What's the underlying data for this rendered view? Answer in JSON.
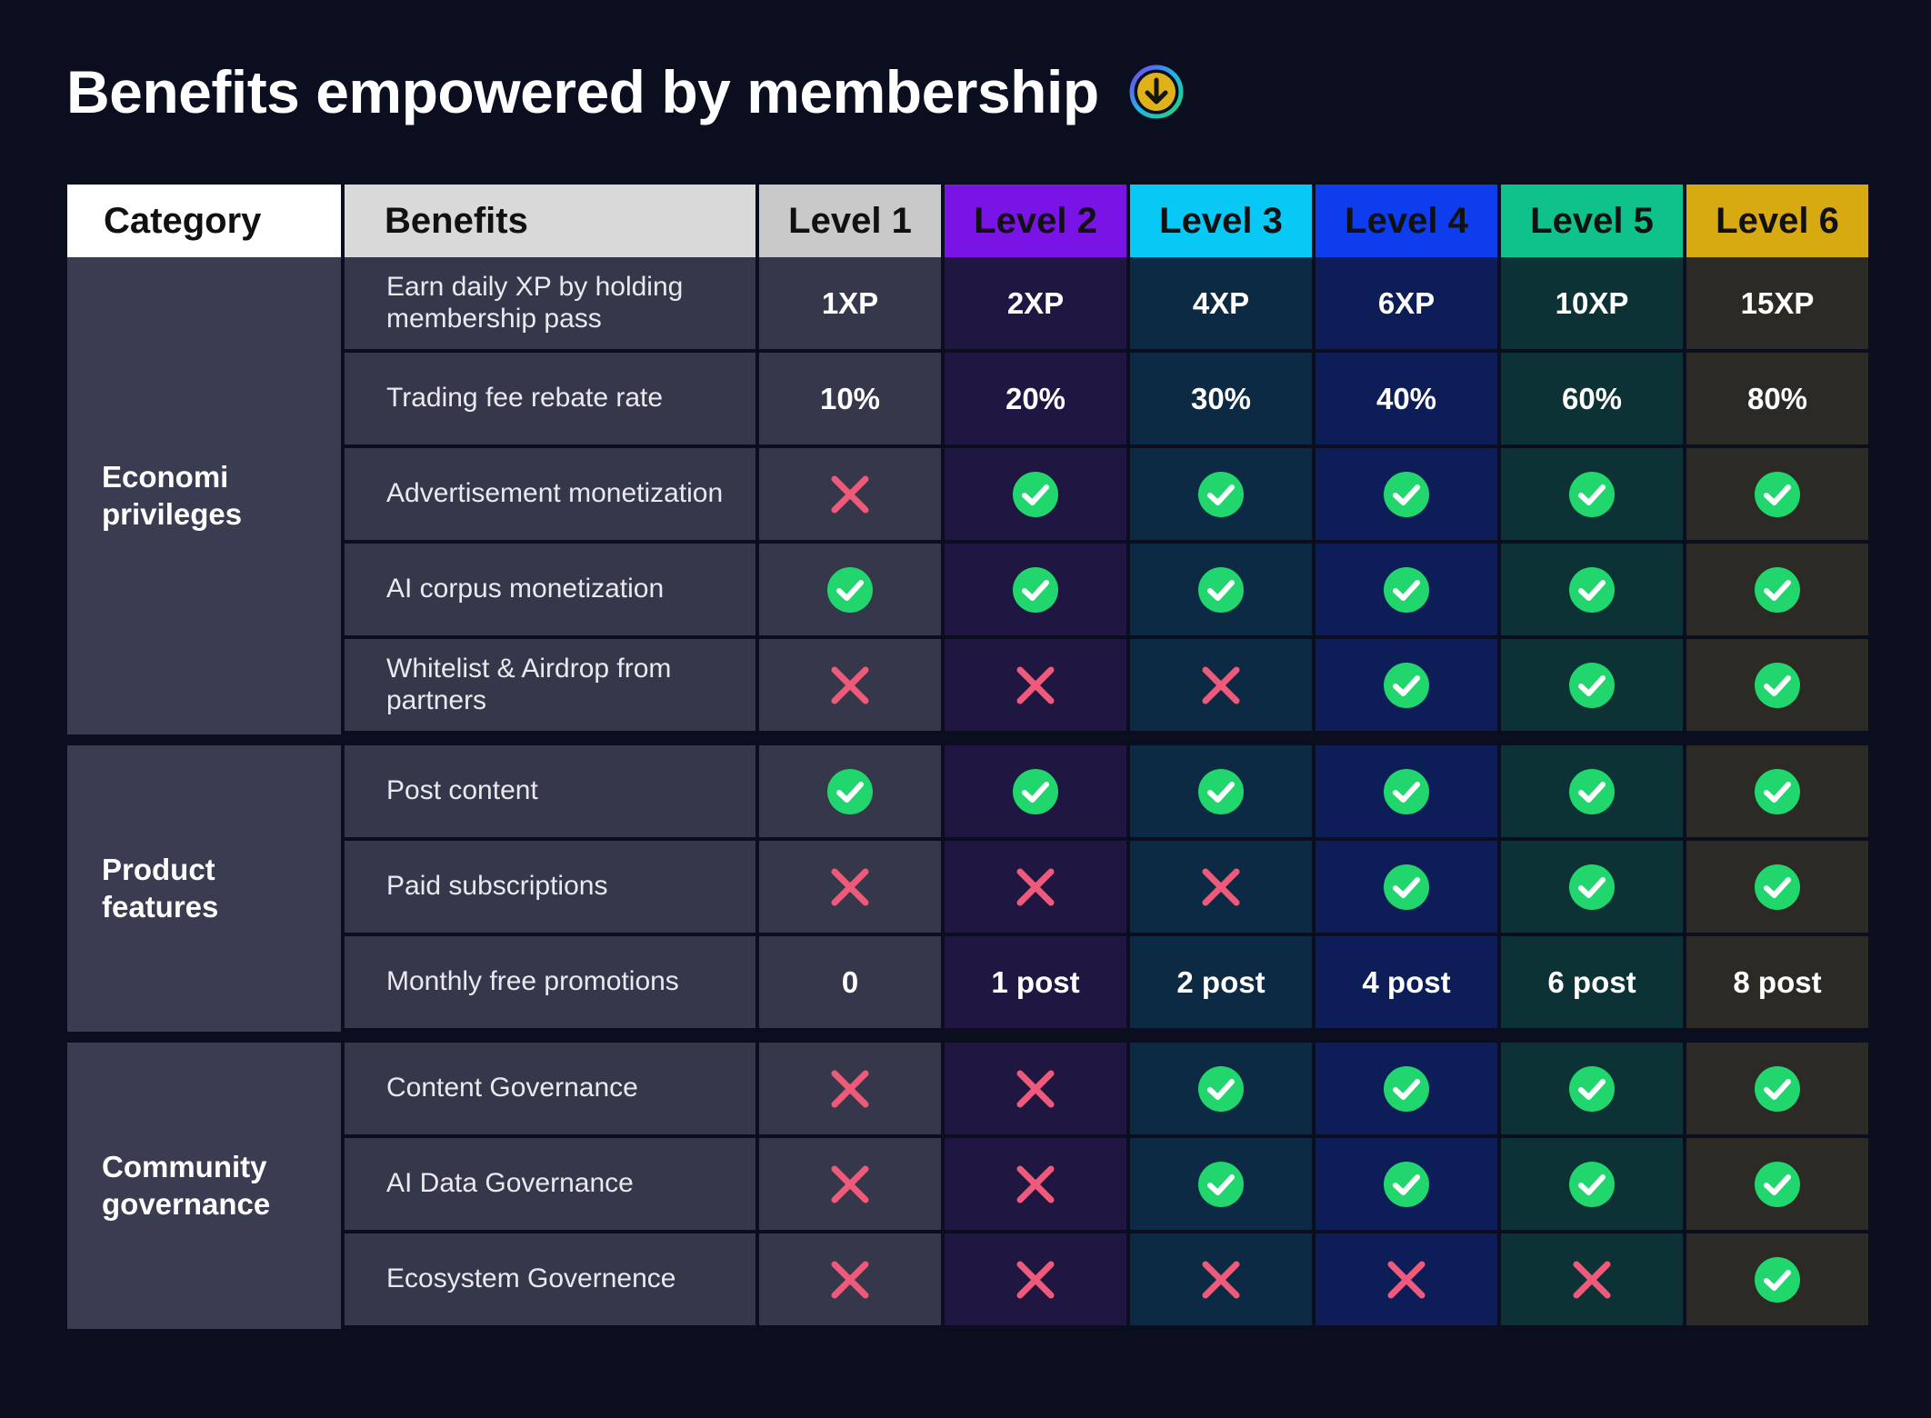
{
  "title": "Benefits empowered by membership",
  "title_icon": "down-arrow-circle-icon",
  "columns": {
    "category": "Category",
    "benefits": "Benefits",
    "levels": [
      {
        "label": "Level 1",
        "header_bg": "#c9c9c9",
        "header_fg": "#111111",
        "cell_bg": "#35374a"
      },
      {
        "label": "Level 2",
        "header_bg": "#7a14e6",
        "header_fg": "#111111",
        "cell_bg": "#1f1642"
      },
      {
        "label": "Level 3",
        "header_bg": "#08c8f5",
        "header_fg": "#111111",
        "cell_bg": "#0d2a44"
      },
      {
        "label": "Level 4",
        "header_bg": "#0d3dec",
        "header_fg": "#111111",
        "cell_bg": "#0c1d58"
      },
      {
        "label": "Level 5",
        "header_bg": "#0fc28b",
        "header_fg": "#111111",
        "cell_bg": "#0c3236"
      },
      {
        "label": "Level 6",
        "header_bg": "#d8aa12",
        "header_fg": "#111111",
        "cell_bg": "#2c2a24"
      }
    ]
  },
  "colors": {
    "check": "#22d66e",
    "cross": "#f05a7a",
    "background": "#0a0e1f"
  },
  "groups": [
    {
      "category": "Economi\nprivileges",
      "rows": [
        {
          "benefit": "Earn daily XP by holding\nmembership pass",
          "values": [
            "1XP",
            "2XP",
            "4XP",
            "6XP",
            "10XP",
            "15XP"
          ]
        },
        {
          "benefit": "Trading fee rebate rate",
          "values": [
            "10%",
            "20%",
            "30%",
            "40%",
            "60%",
            "80%"
          ]
        },
        {
          "benefit": "Advertisement monetization",
          "values": [
            "cross",
            "check",
            "check",
            "check",
            "check",
            "check"
          ]
        },
        {
          "benefit": "AI corpus monetization",
          "values": [
            "check",
            "check",
            "check",
            "check",
            "check",
            "check"
          ]
        },
        {
          "benefit": "Whitelist & Airdrop from\npartners",
          "values": [
            "cross",
            "cross",
            "cross",
            "check",
            "check",
            "check"
          ]
        }
      ]
    },
    {
      "category": "Product\nfeatures",
      "rows": [
        {
          "benefit": "Post content",
          "values": [
            "check",
            "check",
            "check",
            "check",
            "check",
            "check"
          ]
        },
        {
          "benefit": "Paid subscriptions",
          "values": [
            "cross",
            "cross",
            "cross",
            "check",
            "check",
            "check"
          ]
        },
        {
          "benefit": "Monthly free promotions",
          "values": [
            "0",
            "1 post",
            "2 post",
            "4 post",
            "6 post",
            "8 post"
          ]
        }
      ]
    },
    {
      "category": "Community\ngovernance",
      "rows": [
        {
          "benefit": "Content Governance",
          "values": [
            "cross",
            "cross",
            "check",
            "check",
            "check",
            "check"
          ]
        },
        {
          "benefit": "AI Data Governance",
          "values": [
            "cross",
            "cross",
            "check",
            "check",
            "check",
            "check"
          ]
        },
        {
          "benefit": "Ecosystem Governence",
          "values": [
            "cross",
            "cross",
            "cross",
            "cross",
            "cross",
            "check"
          ]
        }
      ]
    }
  ]
}
